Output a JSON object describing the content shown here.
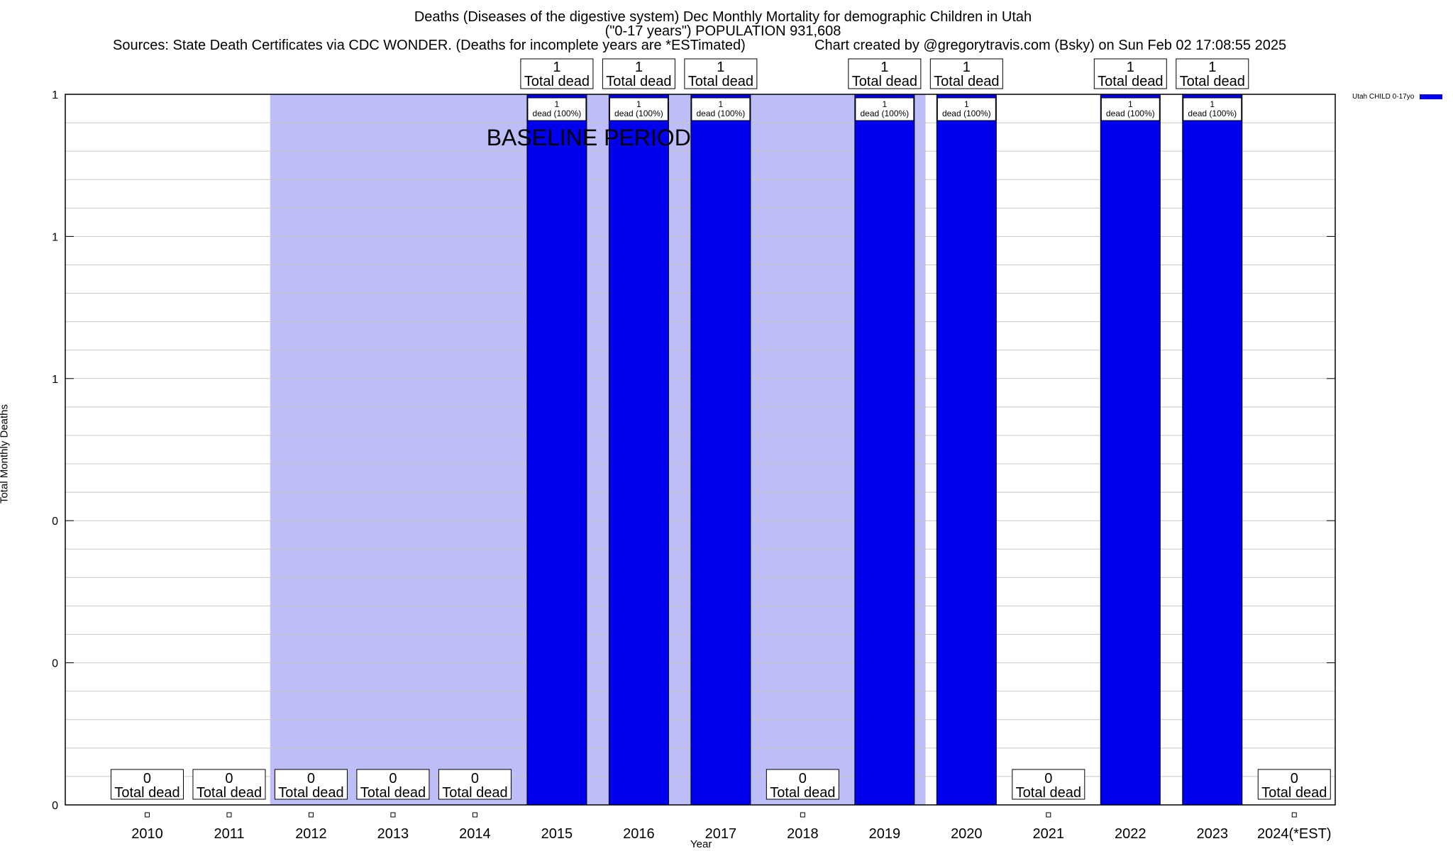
{
  "title": {
    "line1": "Deaths (Diseases of the digestive system) Dec Monthly Mortality for demographic Children in Utah",
    "line2": "(\"0-17 years\") POPULATION 931,608",
    "sources": "Sources: State Death Certificates via CDC WONDER. (Deaths for incomplete years are *ESTimated)",
    "credit": "Chart created by @gregorytravis.com (Bsky) on Sun Feb 02 17:08:55 2025"
  },
  "colors": {
    "bar": "#0000ee",
    "baseline_shade": "#bdbdf7",
    "grid": "#c8c8c8"
  },
  "chart_data": {
    "type": "bar",
    "title": "Deaths (Diseases of the digestive system) Dec Monthly Mortality for demographic Children in Utah",
    "xlabel": "Year",
    "ylabel": "Total Monthly Deaths",
    "categories": [
      "2010",
      "2011",
      "2012",
      "2013",
      "2014",
      "2015",
      "2016",
      "2017",
      "2018",
      "2019",
      "2020",
      "2021",
      "2022",
      "2023",
      "2024(*EST)"
    ],
    "series": [
      {
        "name": "Utah CHILD 0-17yo",
        "values": [
          0,
          0,
          0,
          0,
          0,
          1,
          1,
          1,
          0,
          1,
          1,
          0,
          1,
          1,
          0
        ]
      }
    ],
    "bar_labels": {
      "total_suffix": "Total dead",
      "inner_text": "dead (100%)"
    },
    "ylim": [
      0,
      1
    ],
    "ytick_values": [
      0,
      0.2,
      0.4,
      0.6,
      0.8,
      1
    ],
    "ytick_labels": [
      "0",
      "0",
      "0",
      "1",
      "1",
      "1"
    ],
    "baseline_period": {
      "label": "BASELINE PERIOD",
      "start": "2012",
      "end": "2019"
    },
    "grid": true,
    "legend_position": "top-right"
  }
}
